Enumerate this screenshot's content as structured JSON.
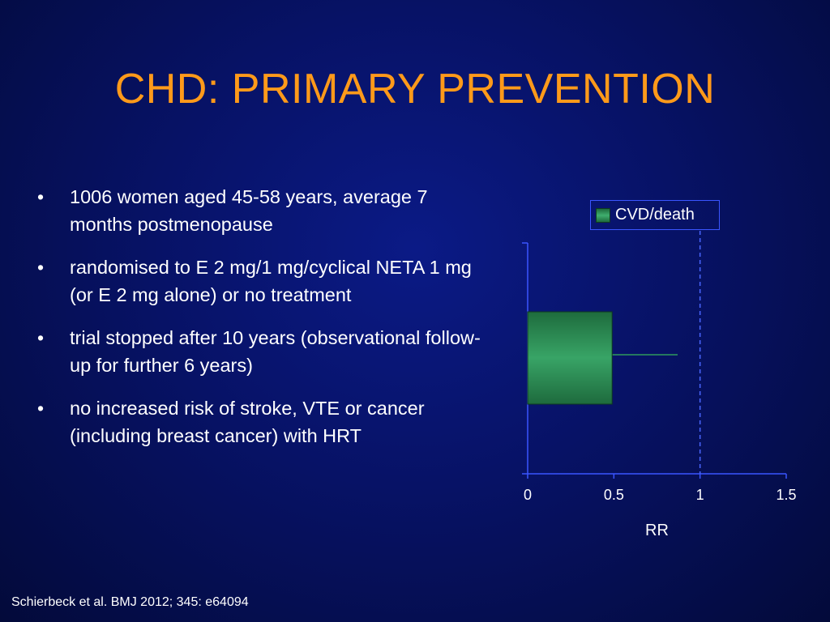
{
  "slide": {
    "title": "CHD: PRIMARY PREVENTION",
    "bullets": [
      "1006 women aged 45-58 years, average 7 months postmenopause",
      "randomised to E 2 mg/1 mg/cyclical NETA 1 mg (or E 2 mg alone) or no treatment",
      "trial stopped after 10 years (observational follow-up for further 6 years)",
      "no increased risk of stroke, VTE or cancer (including breast cancer) with HRT"
    ],
    "bullet_symbol": "•",
    "footnote": "Schierbeck et al. BMJ 2012; 345: e64094"
  },
  "chart_data": {
    "type": "bar",
    "orientation": "horizontal",
    "categories": [
      ""
    ],
    "series": [
      {
        "name": "CVD/death",
        "values": [
          0.49
        ],
        "error_upper": [
          0.87
        ],
        "color": "#2f9a5c"
      }
    ],
    "reference_line": {
      "x": 1,
      "style": "dashed"
    },
    "xlabel": "RR",
    "ylabel": "",
    "xlim": [
      0,
      1.5
    ],
    "xticks": [
      "0",
      "0.5",
      "1",
      "1.5"
    ],
    "legend_position": "top-right",
    "grid": false,
    "axis_color": "#3a55ff"
  }
}
